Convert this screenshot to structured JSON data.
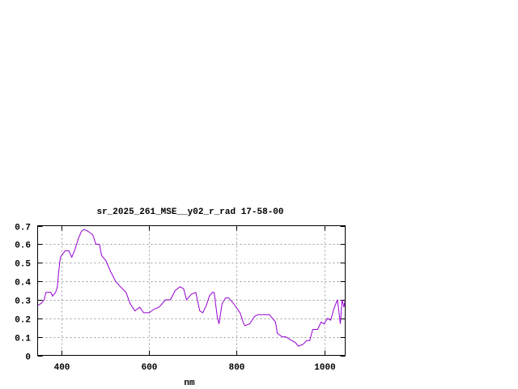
{
  "chart_data": {
    "type": "line",
    "title": "sr_2025_261_MSE__y02_r_rad 17-58-00",
    "xlabel": "nm",
    "ylabel": "",
    "xlim": [
      346,
      1048
    ],
    "ylim": [
      0,
      0.7
    ],
    "xticks": [
      400,
      600,
      800,
      1000
    ],
    "yticks": [
      0,
      0.1,
      0.2,
      0.3,
      0.4,
      0.5,
      0.6,
      0.7
    ],
    "ytick_labels": [
      "0",
      "0.1",
      "0.2",
      "0.3",
      "0.4",
      "0.5",
      "0.6",
      "0.7"
    ],
    "grid": true,
    "line_color": "#9400d3",
    "series": [
      {
        "x": [
          346,
          354,
          361,
          365,
          376,
          380,
          387,
          391,
          394,
          398,
          404,
          409,
          417,
          424,
          431,
          439,
          446,
          452,
          461,
          472,
          479,
          487,
          492,
          502,
          513,
          524,
          535,
          548,
          557,
          568,
          579,
          588,
          601,
          612,
          623,
          638,
          649,
          660,
          671,
          679,
          686,
          697,
          707,
          716,
          723,
          731,
          738,
          745,
          749,
          756,
          760,
          767,
          775,
          782,
          793,
          808,
          815,
          819,
          830,
          841,
          849,
          860,
          875,
          882,
          889,
          893,
          904,
          912,
          919,
          926,
          934,
          941,
          952,
          960,
          967,
          974,
          985,
          993,
          1000,
          1008,
          1015,
          1022,
          1030,
          1033,
          1037,
          1041,
          1045,
          1048
        ],
        "y": [
          0.27,
          0.28,
          0.3,
          0.34,
          0.34,
          0.32,
          0.34,
          0.37,
          0.45,
          0.53,
          0.55,
          0.565,
          0.565,
          0.53,
          0.57,
          0.63,
          0.67,
          0.68,
          0.67,
          0.65,
          0.6,
          0.6,
          0.54,
          0.51,
          0.45,
          0.4,
          0.37,
          0.34,
          0.28,
          0.24,
          0.26,
          0.23,
          0.23,
          0.25,
          0.26,
          0.3,
          0.3,
          0.35,
          0.37,
          0.36,
          0.3,
          0.33,
          0.34,
          0.24,
          0.23,
          0.27,
          0.32,
          0.34,
          0.34,
          0.21,
          0.17,
          0.28,
          0.31,
          0.31,
          0.28,
          0.23,
          0.18,
          0.16,
          0.17,
          0.21,
          0.22,
          0.22,
          0.22,
          0.2,
          0.18,
          0.12,
          0.1,
          0.1,
          0.09,
          0.08,
          0.07,
          0.05,
          0.06,
          0.08,
          0.08,
          0.14,
          0.14,
          0.18,
          0.17,
          0.2,
          0.19,
          0.25,
          0.3,
          0.25,
          0.17,
          0.3,
          0.26,
          0.3
        ]
      }
    ]
  }
}
